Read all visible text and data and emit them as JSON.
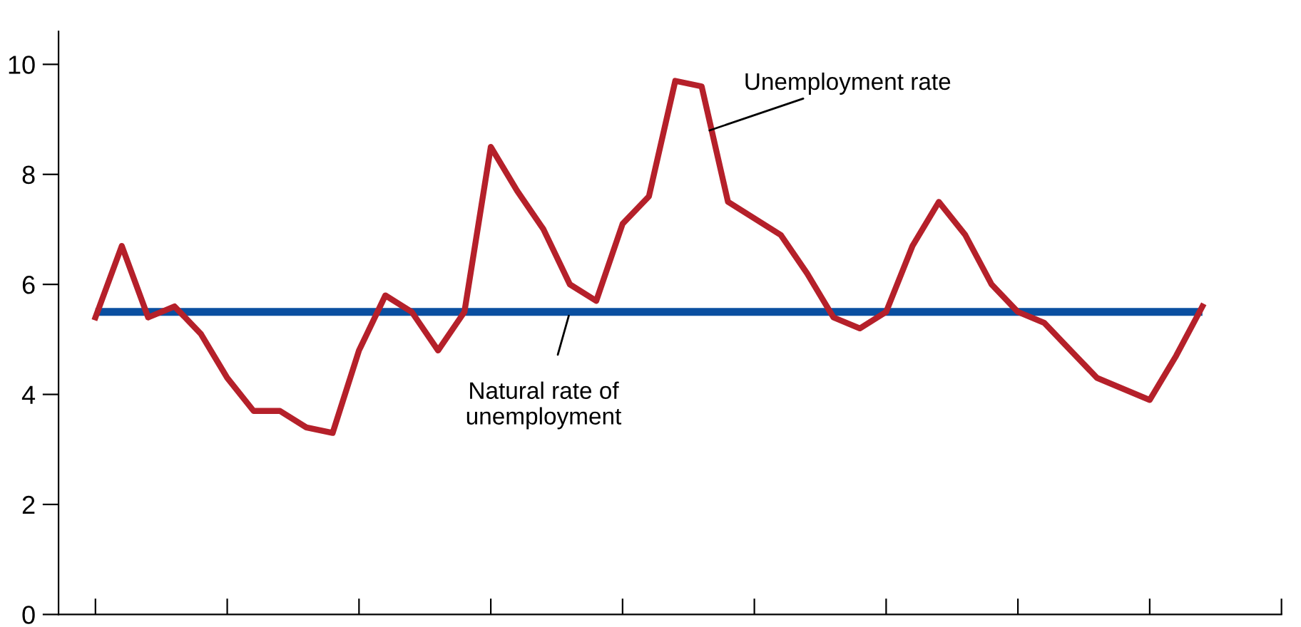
{
  "chart_data": {
    "type": "line",
    "categories": [
      null,
      null,
      null,
      null,
      null,
      null,
      null,
      null,
      null,
      null,
      null,
      null,
      null,
      null,
      null,
      null,
      null,
      null,
      null,
      null,
      null,
      null,
      null,
      null,
      null,
      null,
      null,
      null,
      null,
      null,
      null,
      null,
      null,
      null,
      null,
      null,
      null,
      null,
      null,
      null,
      null,
      null,
      null
    ],
    "series": [
      {
        "color": "#b5202a",
        "values": [
          5.4,
          6.7,
          5.4,
          5.6,
          5.1,
          4.3,
          3.7,
          3.7,
          3.4,
          3.3,
          4.8,
          5.8,
          5.5,
          4.8,
          5.5,
          8.5,
          7.7,
          7.0,
          6.0,
          5.7,
          7.1,
          7.6,
          9.7,
          9.6,
          7.5,
          7.2,
          6.9,
          6.2,
          5.4,
          5.2,
          5.5,
          6.7,
          7.5,
          6.9,
          6.0,
          5.5,
          5.3,
          4.8,
          4.3,
          4.1,
          3.9,
          4.7,
          5.6
        ]
      }
    ],
    "ylim": [
      0,
      10.6
    ],
    "yticks": [
      0,
      2,
      4,
      6,
      8,
      10
    ],
    "ref_lines": [
      {
        "axis": "y",
        "value": 5.5,
        "label": "Natural rate of\nunemployment",
        "color": "#0a4fa0"
      }
    ],
    "annotations": [
      "Unemployment rate"
    ],
    "grid": false,
    "legend": false,
    "marker": "none",
    "line_style": "solid"
  }
}
